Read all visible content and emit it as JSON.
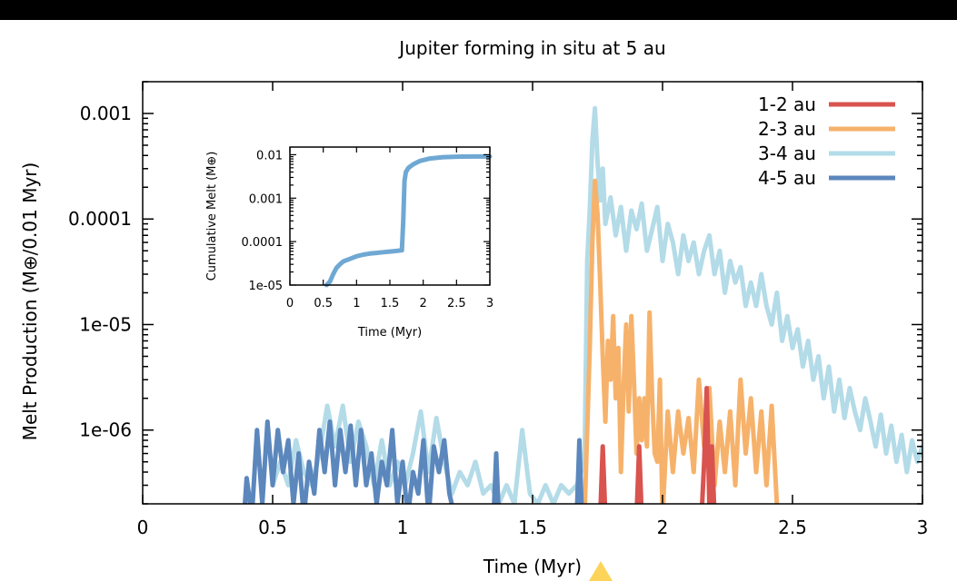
{
  "chart_data": {
    "type": "line",
    "title": "Jupiter forming in situ at 5 au",
    "xlabel": "Time (Myr)",
    "ylabel": "Melt Production (M⊕/0.01 Myr)",
    "xlim": [
      0,
      3
    ],
    "ylim": [
      2e-07,
      0.002
    ],
    "yscale": "log",
    "grid": false,
    "legend_position": "top-right",
    "x_ticks": [
      0,
      0.5,
      1,
      1.5,
      2,
      2.5,
      3
    ],
    "x_tick_labels": [
      "0",
      "0.5",
      "1",
      "1.5",
      "2",
      "2.5",
      "3"
    ],
    "y_ticks": [
      1e-06,
      1e-05,
      0.0001,
      0.001
    ],
    "y_tick_labels": [
      "1e-06",
      "1e-05",
      "0.0001",
      "0.001"
    ],
    "series": [
      {
        "name": "1-2 au",
        "color": "#d9534f",
        "x": [
          1.76,
          1.77,
          1.78,
          1.79,
          1.9,
          1.91,
          1.92,
          2.15,
          2.16,
          2.17,
          2.18,
          2.19,
          2.2,
          2.21
        ],
        "y": [
          1.5e-07,
          7e-07,
          1.5e-07,
          1.5e-07,
          1.5e-07,
          7e-07,
          1.5e-07,
          1.5e-07,
          5e-07,
          2.5e-06,
          2e-07,
          7e-07,
          1.5e-07,
          1.5e-07
        ]
      },
      {
        "name": "2-3 au",
        "color": "#f6b26b",
        "x": [
          1.7,
          1.72,
          1.73,
          1.74,
          1.75,
          1.76,
          1.77,
          1.78,
          1.79,
          1.8,
          1.81,
          1.82,
          1.83,
          1.84,
          1.85,
          1.86,
          1.87,
          1.88,
          1.89,
          1.9,
          1.91,
          1.92,
          1.93,
          1.94,
          1.95,
          1.96,
          1.97,
          1.98,
          1.99,
          2.0,
          2.02,
          2.04,
          2.06,
          2.08,
          2.1,
          2.12,
          2.14,
          2.16,
          2.18,
          2.2,
          2.22,
          2.24,
          2.26,
          2.28,
          2.3,
          2.32,
          2.34,
          2.36,
          2.38,
          2.4,
          2.42,
          2.44
        ],
        "y": [
          1.5e-07,
          6e-06,
          6e-05,
          0.00023,
          0.00011,
          2.5e-05,
          5e-06,
          1.2e-06,
          7e-06,
          3e-06,
          1.2e-05,
          2e-06,
          6e-06,
          4e-07,
          2.5e-06,
          1e-05,
          1.5e-06,
          1.2e-05,
          3e-06,
          6e-07,
          2e-06,
          8e-07,
          2e-06,
          7e-07,
          1.3e-05,
          2e-06,
          6e-07,
          5e-07,
          3e-06,
          1.5e-07,
          1.5e-06,
          4e-07,
          1.5e-06,
          6e-07,
          1.3e-06,
          4e-07,
          3e-06,
          7e-07,
          2.5e-06,
          3e-07,
          1.2e-06,
          4e-07,
          1.5e-06,
          3e-07,
          3e-06,
          6e-07,
          2e-06,
          4e-07,
          1.5e-06,
          3e-07,
          1.7e-06,
          2e-07
        ]
      },
      {
        "name": "3-4 au",
        "color": "#b3dbe8",
        "x": [
          0.5,
          0.53,
          0.56,
          0.59,
          0.62,
          0.65,
          0.68,
          0.71,
          0.74,
          0.77,
          0.8,
          0.83,
          0.86,
          0.89,
          0.92,
          0.95,
          0.98,
          1.01,
          1.04,
          1.07,
          1.1,
          1.13,
          1.16,
          1.19,
          1.22,
          1.25,
          1.28,
          1.31,
          1.34,
          1.37,
          1.4,
          1.43,
          1.46,
          1.49,
          1.52,
          1.55,
          1.58,
          1.61,
          1.64,
          1.67,
          1.7,
          1.71,
          1.72,
          1.73,
          1.74,
          1.75,
          1.76,
          1.77,
          1.78,
          1.8,
          1.82,
          1.84,
          1.86,
          1.88,
          1.9,
          1.92,
          1.94,
          1.96,
          1.98,
          2.0,
          2.02,
          2.04,
          2.06,
          2.08,
          2.1,
          2.12,
          2.14,
          2.16,
          2.18,
          2.2,
          2.22,
          2.24,
          2.26,
          2.28,
          2.3,
          2.32,
          2.34,
          2.36,
          2.38,
          2.4,
          2.42,
          2.44,
          2.46,
          2.48,
          2.5,
          2.52,
          2.54,
          2.56,
          2.58,
          2.6,
          2.62,
          2.64,
          2.66,
          2.68,
          2.7,
          2.72,
          2.74,
          2.76,
          2.78,
          2.8,
          2.82,
          2.84,
          2.86,
          2.88,
          2.9,
          2.92,
          2.94,
          2.96,
          2.98,
          3.0
        ],
        "y": [
          3e-07,
          5e-07,
          3e-07,
          8e-07,
          4e-07,
          3e-07,
          6e-07,
          1.7e-06,
          7e-07,
          1.7e-06,
          5e-07,
          1.2e-06,
          7e-07,
          3e-07,
          8e-07,
          3e-07,
          5e-07,
          3e-07,
          6e-07,
          1.5e-06,
          4e-07,
          1.3e-06,
          5e-07,
          2.5e-07,
          4e-07,
          3e-07,
          5e-07,
          2.5e-07,
          3e-07,
          2e-07,
          3e-07,
          2e-07,
          1e-06,
          2.5e-07,
          2e-07,
          3e-07,
          2e-07,
          3e-07,
          2.5e-07,
          3e-07,
          5e-07,
          4e-05,
          0.00012,
          0.00055,
          0.00112,
          0.00035,
          0.00015,
          0.0003,
          9e-05,
          0.00016,
          7e-05,
          0.00013,
          5e-05,
          0.00012,
          8e-05,
          0.00014,
          5e-05,
          8e-05,
          0.00013,
          4e-05,
          9e-05,
          6e-05,
          3e-05,
          7e-05,
          4e-05,
          6e-05,
          3e-05,
          5e-05,
          7e-05,
          3e-05,
          5e-05,
          2e-05,
          4e-05,
          2.5e-05,
          3.5e-05,
          1.5e-05,
          2.5e-05,
          1.5e-05,
          3e-05,
          1.5e-05,
          1e-05,
          2e-05,
          7e-06,
          1.2e-05,
          6e-06,
          9e-06,
          4e-06,
          7e-06,
          3e-06,
          5e-06,
          2e-06,
          4e-06,
          1.5e-06,
          3e-06,
          1.3e-06,
          2.5e-06,
          1.5e-06,
          1e-06,
          2e-06,
          1.2e-06,
          7e-07,
          1.4e-06,
          6e-07,
          1.1e-06,
          5e-07,
          9e-07,
          4e-07,
          8e-07,
          5e-07,
          7e-07
        ]
      },
      {
        "name": "4-5 au",
        "color": "#5b87bd",
        "x": [
          0.39,
          0.4,
          0.42,
          0.44,
          0.46,
          0.48,
          0.5,
          0.52,
          0.54,
          0.56,
          0.58,
          0.6,
          0.62,
          0.64,
          0.66,
          0.68,
          0.7,
          0.72,
          0.74,
          0.76,
          0.78,
          0.8,
          0.82,
          0.84,
          0.86,
          0.88,
          0.9,
          0.92,
          0.94,
          0.96,
          0.98,
          1.0,
          1.02,
          1.04,
          1.06,
          1.08,
          1.1,
          1.12,
          1.14,
          1.16,
          1.18,
          1.2,
          1.35,
          1.36,
          1.37,
          1.67,
          1.68,
          1.69
        ],
        "y": [
          1.5e-07,
          3.5e-07,
          1.5e-07,
          1e-06,
          2e-07,
          1.2e-06,
          3e-07,
          1e-06,
          4e-07,
          8e-07,
          2e-07,
          6e-07,
          1.5e-07,
          5e-07,
          2.5e-07,
          1e-06,
          4e-07,
          1.2e-06,
          3e-07,
          1e-06,
          4e-07,
          1.1e-06,
          3e-07,
          1e-06,
          3e-07,
          6e-07,
          2e-07,
          5e-07,
          3e-07,
          1e-06,
          2e-07,
          5e-07,
          1.5e-07,
          4e-07,
          2.5e-07,
          8e-07,
          1.5e-07,
          7e-07,
          4e-07,
          8e-07,
          2.5e-07,
          1.5e-07,
          1.5e-07,
          6e-07,
          1.5e-07,
          1.5e-07,
          8e-07,
          1.5e-07
        ]
      }
    ],
    "inset": {
      "type": "line",
      "xlabel": "Time (Myr)",
      "ylabel": "Cumulative Melt (M⊕)",
      "xlim": [
        0,
        3
      ],
      "ylim": [
        1e-05,
        0.015
      ],
      "yscale": "log",
      "x_ticks": [
        0,
        0.5,
        1,
        1.5,
        2,
        2.5,
        3
      ],
      "x_tick_labels": [
        "0",
        "0.5",
        "1",
        "1.5",
        "2",
        "2.5",
        "3"
      ],
      "y_ticks": [
        1e-05,
        0.0001,
        0.001,
        0.01
      ],
      "y_tick_labels": [
        "1e-05",
        "0.0001",
        "0.001",
        "0.01"
      ],
      "color": "#6fa8d3",
      "x": [
        0.55,
        0.6,
        0.65,
        0.7,
        0.75,
        0.8,
        0.9,
        1.0,
        1.1,
        1.2,
        1.3,
        1.4,
        1.5,
        1.6,
        1.68,
        1.7,
        1.72,
        1.74,
        1.78,
        1.85,
        1.95,
        2.1,
        2.3,
        2.5,
        2.75,
        3.0
      ],
      "y": [
        1e-05,
        1.2e-05,
        1.8e-05,
        2.5e-05,
        3e-05,
        3.5e-05,
        4e-05,
        4.6e-05,
        5e-05,
        5.3e-05,
        5.5e-05,
        5.7e-05,
        5.9e-05,
        6.1e-05,
        6.3e-05,
        0.0003,
        0.0025,
        0.004,
        0.005,
        0.006,
        0.0072,
        0.0082,
        0.0088,
        0.009,
        0.0091,
        0.0091
      ]
    }
  },
  "marker_color": "#fcd45a"
}
